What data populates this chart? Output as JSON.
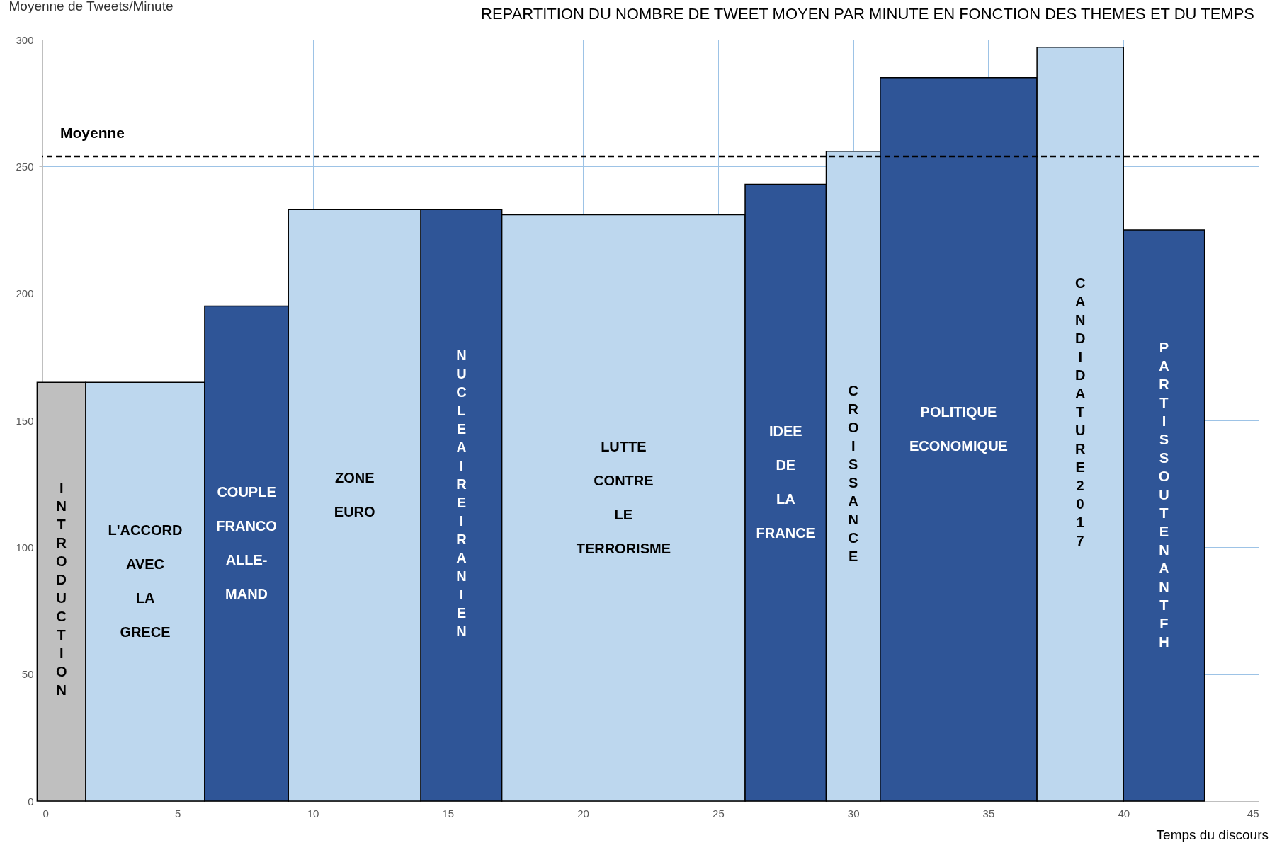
{
  "chart_data": {
    "type": "histogram",
    "title": "REPARTITION DU NOMBRE DE TWEET MOYEN PAR MINUTE EN FONCTION DES THEMES ET DU TEMPS",
    "ylabel": "Moyenne de Tweets/Minute",
    "xlabel": "Temps du discours",
    "categories": [
      "INTRODUCTION",
      "L'ACCORD AVEC LA GRECE",
      "COUPLE FRANCO ALLE-MAND",
      "ZONE EURO",
      "NUCLEAIRE IRANIEN",
      "LUTTE CONTRE LE TERRORISME",
      "IDEE DE LA FRANCE",
      "CROISSANCE",
      "POLITIQUE ECONOMIQUE",
      "CANDIDATURE 2017",
      "PARTIS SOUTENANT FH"
    ],
    "bins": [
      -0.2,
      1.6,
      6.0,
      9.1,
      14.0,
      17.0,
      26.0,
      29.0,
      31.0,
      36.8,
      40.0,
      43.0
    ],
    "values": [
      165,
      165,
      195,
      233,
      233,
      231,
      243,
      256,
      285,
      297,
      225
    ],
    "colors": [
      "#bfbfbf",
      "#bdd7ee",
      "#2f5597",
      "#bdd7ee",
      "#2f5597",
      "#bdd7ee",
      "#2f5597",
      "#bdd7ee",
      "#2f5597",
      "#bdd7ee",
      "#2f5597"
    ],
    "xlim": [
      0,
      45
    ],
    "xticks": [
      0,
      5,
      10,
      15,
      20,
      25,
      30,
      35,
      40,
      45
    ],
    "ylim": [
      0,
      300
    ],
    "yticks": [
      0,
      50,
      100,
      150,
      200,
      250,
      300
    ],
    "ref_lines": [
      {
        "axis": "y",
        "value": 254,
        "label": "Moyenne",
        "color": "#000000",
        "line_style": "dashed"
      }
    ],
    "grid": true,
    "legend": false
  }
}
